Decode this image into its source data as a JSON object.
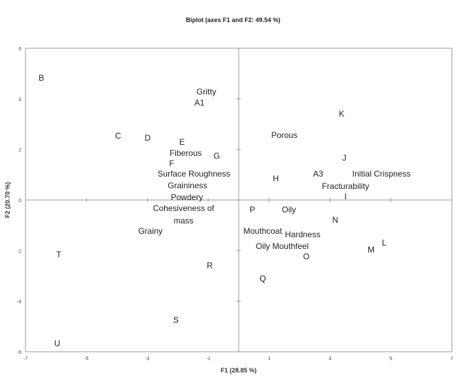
{
  "chart_data": {
    "type": "scatter",
    "title": "Biplot (axes F1 and F2: 49.54 %)",
    "xlabel": "F1 (28.85 %)",
    "ylabel": "F2 (20.70 %)",
    "xlim": [
      -7,
      7
    ],
    "ylim": [
      -6,
      6
    ],
    "xticks": [
      -7,
      -5,
      -3,
      -1,
      1,
      3,
      5,
      7
    ],
    "yticks": [
      -6,
      -4,
      -2,
      0,
      2,
      4,
      6
    ],
    "grid": false,
    "markers_visible": false,
    "points": [
      {
        "label": "B",
        "x": -6.48,
        "y": 4.83
      },
      {
        "label": "Gritty",
        "x": -1.06,
        "y": 4.28
      },
      {
        "label": "A1",
        "x": -1.29,
        "y": 3.87
      },
      {
        "label": "C",
        "x": -3.96,
        "y": 2.54
      },
      {
        "label": "D",
        "x": -2.99,
        "y": 2.45
      },
      {
        "label": "E",
        "x": -1.86,
        "y": 2.29
      },
      {
        "label": "Fiberous",
        "x": -1.74,
        "y": 1.85
      },
      {
        "label": "G",
        "x": -0.72,
        "y": 1.75
      },
      {
        "label": "F",
        "x": -2.2,
        "y": 1.45
      },
      {
        "label": "Surface Roughness",
        "x": -1.47,
        "y": 1.04
      },
      {
        "label": "Graininess",
        "x": -1.68,
        "y": 0.55
      },
      {
        "label": "Powdery",
        "x": -1.7,
        "y": 0.16
      },
      {
        "label": "Cohesiveness of mass",
        "x": -1.81,
        "y": -0.57
      },
      {
        "label": "Grainy",
        "x": -2.9,
        "y": -1.23
      },
      {
        "label": "T",
        "x": -5.91,
        "y": -2.15
      },
      {
        "label": "R",
        "x": -0.95,
        "y": -2.59
      },
      {
        "label": "S",
        "x": -2.06,
        "y": -4.75
      },
      {
        "label": "U",
        "x": -5.96,
        "y": -5.67
      },
      {
        "label": "K",
        "x": 3.38,
        "y": 3.41
      },
      {
        "label": "Porous",
        "x": 1.5,
        "y": 2.56
      },
      {
        "label": "J",
        "x": 3.47,
        "y": 1.66
      },
      {
        "label": "H",
        "x": 1.22,
        "y": 0.85
      },
      {
        "label": "A3",
        "x": 2.61,
        "y": 0.98
      },
      {
        "label": "Initial Crispness",
        "x": 4.69,
        "y": 0.98
      },
      {
        "label": "Fracturability",
        "x": 3.51,
        "y": 0.63
      },
      {
        "label": "I",
        "x": 3.51,
        "y": 0.22
      },
      {
        "label": "P",
        "x": 0.45,
        "y": -0.38
      },
      {
        "label": "Oily",
        "x": 1.65,
        "y": -0.38
      },
      {
        "label": "N",
        "x": 3.17,
        "y": -0.79
      },
      {
        "label": "Mouthcoat",
        "x": 1.06,
        "y": -1.23
      },
      {
        "label": "Hardness",
        "x": 1.74,
        "y": -1.36
      },
      {
        "label": "Oily Mouthfeel",
        "x": 1.43,
        "y": -1.77
      },
      {
        "label": "O",
        "x": 2.22,
        "y": -2.24
      },
      {
        "label": "L",
        "x": 4.78,
        "y": -1.69
      },
      {
        "label": "M",
        "x": 4.35,
        "y": -1.96
      },
      {
        "label": "Q",
        "x": 0.79,
        "y": -3.11
      }
    ],
    "colors": {
      "text": "#222222",
      "axis": "#999999"
    }
  }
}
